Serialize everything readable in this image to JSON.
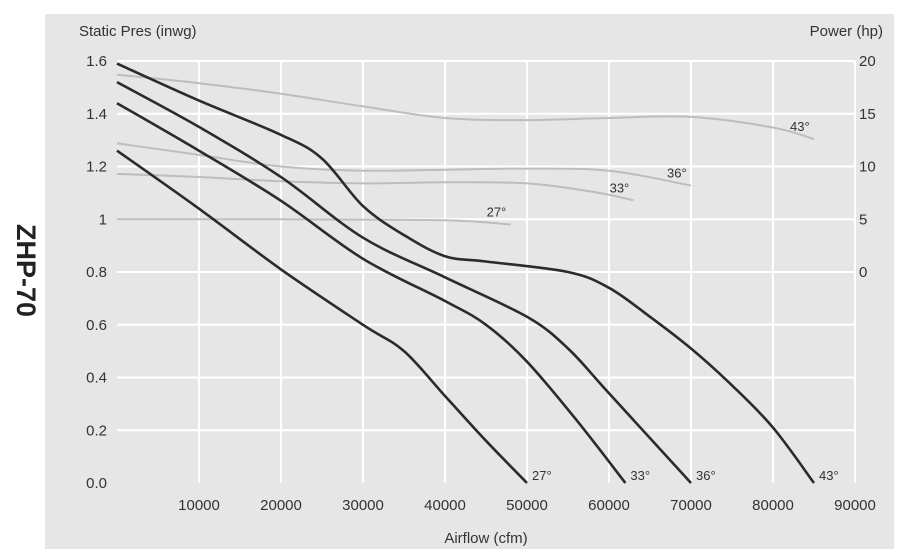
{
  "model": "ZHP-70",
  "chart_data": {
    "type": "line",
    "title": "",
    "xlabel": "Airflow (cfm)",
    "ylabel": "Static Pres (inwg)",
    "y2label": "Power (hp)",
    "xlim": [
      0,
      90000
    ],
    "ylim": [
      0,
      1.6
    ],
    "y2lim": [
      0,
      20
    ],
    "xticks": [
      "10000",
      "20000",
      "30000",
      "40000",
      "50000",
      "60000",
      "70000",
      "80000",
      "90000"
    ],
    "yticks": [
      "0.0",
      "0.2",
      "0.4",
      "0.6",
      "0.8",
      "1",
      "1.2",
      "1.4",
      "1.6"
    ],
    "y2ticks": [
      "0",
      "5",
      "10",
      "15",
      "20"
    ],
    "grid": true,
    "colors": {
      "plot_bg": "#e6e6e6",
      "grid": "#ffffff",
      "pressure": "#2b2b2b",
      "power": "#bdbdbd"
    },
    "pressure_series": [
      {
        "name": "27°",
        "points": [
          [
            0,
            1.26
          ],
          [
            10000,
            1.04
          ],
          [
            20000,
            0.81
          ],
          [
            30000,
            0.6
          ],
          [
            35000,
            0.5
          ],
          [
            40000,
            0.33
          ],
          [
            45000,
            0.16
          ],
          [
            50000,
            0
          ]
        ]
      },
      {
        "name": "33°",
        "points": [
          [
            0,
            1.44
          ],
          [
            10000,
            1.26
          ],
          [
            20000,
            1.07
          ],
          [
            30000,
            0.85
          ],
          [
            40000,
            0.69
          ],
          [
            45000,
            0.6
          ],
          [
            50000,
            0.46
          ],
          [
            56000,
            0.24
          ],
          [
            62000,
            0
          ]
        ]
      },
      {
        "name": "36°",
        "points": [
          [
            0,
            1.52
          ],
          [
            10000,
            1.35
          ],
          [
            20000,
            1.16
          ],
          [
            30000,
            0.93
          ],
          [
            40000,
            0.78
          ],
          [
            50000,
            0.63
          ],
          [
            55000,
            0.51
          ],
          [
            60000,
            0.34
          ],
          [
            70000,
            0
          ]
        ]
      },
      {
        "name": "43°",
        "points": [
          [
            0,
            1.59
          ],
          [
            10000,
            1.45
          ],
          [
            20000,
            1.32
          ],
          [
            25000,
            1.23
          ],
          [
            30000,
            1.05
          ],
          [
            35000,
            0.94
          ],
          [
            40000,
            0.86
          ],
          [
            45000,
            0.84
          ],
          [
            55000,
            0.8
          ],
          [
            60000,
            0.74
          ],
          [
            65000,
            0.63
          ],
          [
            70000,
            0.51
          ],
          [
            75000,
            0.37
          ],
          [
            80000,
            0.21
          ],
          [
            85000,
            0
          ]
        ]
      }
    ],
    "power_series": [
      {
        "name": "27°",
        "points": [
          [
            0,
            5
          ],
          [
            20000,
            5
          ],
          [
            40000,
            4.9
          ],
          [
            48000,
            4.5
          ]
        ]
      },
      {
        "name": "33°",
        "points": [
          [
            0,
            9.3
          ],
          [
            10000,
            9
          ],
          [
            20000,
            8.6
          ],
          [
            30000,
            8.4
          ],
          [
            40000,
            8.5
          ],
          [
            50000,
            8.4
          ],
          [
            58000,
            7.6
          ],
          [
            63000,
            6.8
          ]
        ]
      },
      {
        "name": "36°",
        "points": [
          [
            0,
            12.2
          ],
          [
            10000,
            11.1
          ],
          [
            20000,
            10
          ],
          [
            30000,
            9.6
          ],
          [
            40000,
            9.7
          ],
          [
            50000,
            9.8
          ],
          [
            60000,
            9.6
          ],
          [
            70000,
            8.2
          ]
        ]
      },
      {
        "name": "43°",
        "points": [
          [
            0,
            18.7
          ],
          [
            10000,
            17.9
          ],
          [
            20000,
            16.9
          ],
          [
            30000,
            15.7
          ],
          [
            40000,
            14.6
          ],
          [
            50000,
            14.4
          ],
          [
            60000,
            14.6
          ],
          [
            70000,
            14.7
          ],
          [
            80000,
            13.7
          ],
          [
            85000,
            12.6
          ]
        ]
      }
    ],
    "pressure_labels": [
      "27°",
      "33°",
      "36°",
      "43°"
    ],
    "power_labels": [
      "27°",
      "33°",
      "36°",
      "43°"
    ]
  }
}
